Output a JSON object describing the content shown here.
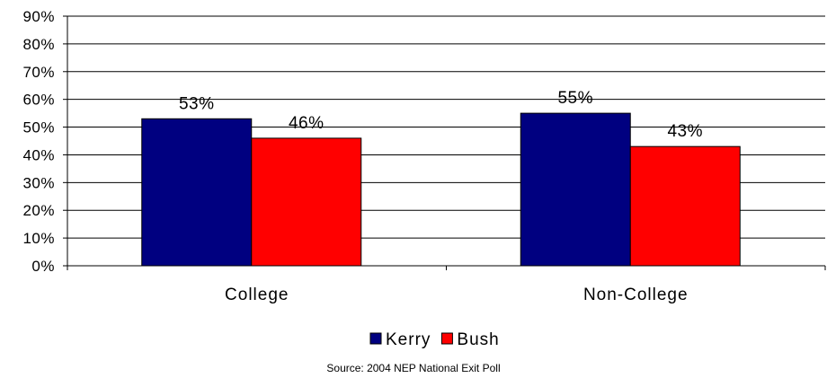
{
  "chart_data": {
    "type": "bar",
    "categories": [
      "College",
      "Non-College"
    ],
    "series": [
      {
        "name": "Kerry",
        "values": [
          53,
          55
        ],
        "color": "#000080"
      },
      {
        "name": "Bush",
        "values": [
          46,
          43
        ],
        "color": "#ff0000"
      }
    ],
    "data_labels": [
      [
        "53%",
        "55%"
      ],
      [
        "46%",
        "43%"
      ]
    ],
    "ylim": [
      0,
      90
    ],
    "ytick_labels": [
      "0%",
      "10%",
      "20%",
      "30%",
      "40%",
      "50%",
      "60%",
      "70%",
      "80%",
      "90%"
    ],
    "grid": true,
    "legend_position": "bottom"
  },
  "source_note": "Source: 2004 NEP National Exit Poll"
}
